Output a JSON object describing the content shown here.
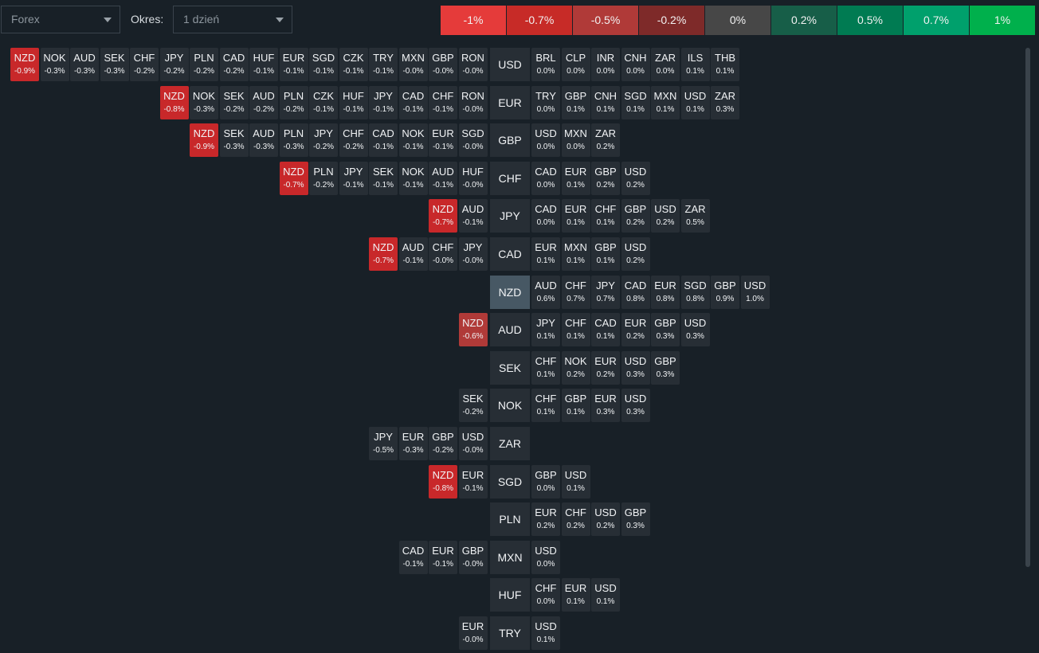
{
  "toolbar": {
    "market": "Forex",
    "period_label": "Okres:",
    "period": "1 dzień"
  },
  "legend": [
    {
      "label": "-1%",
      "color": "#e53b3a"
    },
    {
      "label": "-0.7%",
      "color": "#c72b27"
    },
    {
      "label": "-0.5%",
      "color": "#b03a38"
    },
    {
      "label": "-0.2%",
      "color": "#7e2a29"
    },
    {
      "label": "0%",
      "color": "#474747"
    },
    {
      "label": "0.2%",
      "color": "#175e48"
    },
    {
      "label": "0.5%",
      "color": "#007b52"
    },
    {
      "label": "0.7%",
      "color": "#00a06c"
    },
    {
      "label": "1%",
      "color": "#00b04c"
    }
  ],
  "colors": {
    "cell": "#272e35",
    "strong_negative": "#c8282a",
    "negative": "#b03a38",
    "highlight": "#475864"
  },
  "highlighted": "NZD",
  "rows": [
    {
      "base": "USD",
      "left": [
        [
          "NZD",
          "-0.9%"
        ],
        [
          "NOK",
          "-0.3%"
        ],
        [
          "AUD",
          "-0.3%"
        ],
        [
          "SEK",
          "-0.3%"
        ],
        [
          "CHF",
          "-0.2%"
        ],
        [
          "JPY",
          "-0.2%"
        ],
        [
          "PLN",
          "-0.2%"
        ],
        [
          "CAD",
          "-0.2%"
        ],
        [
          "HUF",
          "-0.1%"
        ],
        [
          "EUR",
          "-0.1%"
        ],
        [
          "SGD",
          "-0.1%"
        ],
        [
          "CZK",
          "-0.1%"
        ],
        [
          "TRY",
          "-0.1%"
        ],
        [
          "MXN",
          "-0.0%"
        ],
        [
          "GBP",
          "-0.0%"
        ],
        [
          "RON",
          "-0.0%"
        ]
      ],
      "right": [
        [
          "BRL",
          "0.0%"
        ],
        [
          "CLP",
          "0.0%"
        ],
        [
          "INR",
          "0.0%"
        ],
        [
          "CNH",
          "0.0%"
        ],
        [
          "ZAR",
          "0.0%"
        ],
        [
          "ILS",
          "0.1%"
        ],
        [
          "THB",
          "0.1%"
        ]
      ]
    },
    {
      "base": "EUR",
      "left": [
        [
          "NZD",
          "-0.8%"
        ],
        [
          "NOK",
          "-0.3%"
        ],
        [
          "SEK",
          "-0.2%"
        ],
        [
          "AUD",
          "-0.2%"
        ],
        [
          "PLN",
          "-0.2%"
        ],
        [
          "CZK",
          "-0.1%"
        ],
        [
          "HUF",
          "-0.1%"
        ],
        [
          "JPY",
          "-0.1%"
        ],
        [
          "CAD",
          "-0.1%"
        ],
        [
          "CHF",
          "-0.1%"
        ],
        [
          "RON",
          "-0.0%"
        ]
      ],
      "right": [
        [
          "TRY",
          "0.0%"
        ],
        [
          "GBP",
          "0.1%"
        ],
        [
          "CNH",
          "0.1%"
        ],
        [
          "SGD",
          "0.1%"
        ],
        [
          "MXN",
          "0.1%"
        ],
        [
          "USD",
          "0.1%"
        ],
        [
          "ZAR",
          "0.3%"
        ]
      ]
    },
    {
      "base": "GBP",
      "left": [
        [
          "NZD",
          "-0.9%"
        ],
        [
          "SEK",
          "-0.3%"
        ],
        [
          "AUD",
          "-0.3%"
        ],
        [
          "PLN",
          "-0.3%"
        ],
        [
          "JPY",
          "-0.2%"
        ],
        [
          "CHF",
          "-0.2%"
        ],
        [
          "CAD",
          "-0.1%"
        ],
        [
          "NOK",
          "-0.1%"
        ],
        [
          "EUR",
          "-0.1%"
        ],
        [
          "SGD",
          "-0.0%"
        ]
      ],
      "right": [
        [
          "USD",
          "0.0%"
        ],
        [
          "MXN",
          "0.0%"
        ],
        [
          "ZAR",
          "0.2%"
        ]
      ]
    },
    {
      "base": "CHF",
      "left": [
        [
          "NZD",
          "-0.7%"
        ],
        [
          "PLN",
          "-0.2%"
        ],
        [
          "JPY",
          "-0.1%"
        ],
        [
          "SEK",
          "-0.1%"
        ],
        [
          "NOK",
          "-0.1%"
        ],
        [
          "AUD",
          "-0.1%"
        ],
        [
          "HUF",
          "-0.0%"
        ]
      ],
      "right": [
        [
          "CAD",
          "0.0%"
        ],
        [
          "EUR",
          "0.1%"
        ],
        [
          "GBP",
          "0.2%"
        ],
        [
          "USD",
          "0.2%"
        ]
      ]
    },
    {
      "base": "JPY",
      "left": [
        [
          "NZD",
          "-0.7%"
        ],
        [
          "AUD",
          "-0.1%"
        ]
      ],
      "right": [
        [
          "CAD",
          "0.0%"
        ],
        [
          "EUR",
          "0.1%"
        ],
        [
          "CHF",
          "0.1%"
        ],
        [
          "GBP",
          "0.2%"
        ],
        [
          "USD",
          "0.2%"
        ],
        [
          "ZAR",
          "0.5%"
        ]
      ]
    },
    {
      "base": "CAD",
      "left": [
        [
          "NZD",
          "-0.7%"
        ],
        [
          "AUD",
          "-0.1%"
        ],
        [
          "CHF",
          "-0.0%"
        ],
        [
          "JPY",
          "-0.0%"
        ]
      ],
      "right": [
        [
          "EUR",
          "0.1%"
        ],
        [
          "MXN",
          "0.1%"
        ],
        [
          "GBP",
          "0.1%"
        ],
        [
          "USD",
          "0.2%"
        ]
      ]
    },
    {
      "base": "NZD",
      "left": [],
      "right": [
        [
          "AUD",
          "0.6%"
        ],
        [
          "CHF",
          "0.7%"
        ],
        [
          "JPY",
          "0.7%"
        ],
        [
          "CAD",
          "0.8%"
        ],
        [
          "EUR",
          "0.8%"
        ],
        [
          "SGD",
          "0.8%"
        ],
        [
          "GBP",
          "0.9%"
        ],
        [
          "USD",
          "1.0%"
        ]
      ]
    },
    {
      "base": "AUD",
      "left": [
        [
          "NZD",
          "-0.6%"
        ]
      ],
      "right": [
        [
          "JPY",
          "0.1%"
        ],
        [
          "CHF",
          "0.1%"
        ],
        [
          "CAD",
          "0.1%"
        ],
        [
          "EUR",
          "0.2%"
        ],
        [
          "GBP",
          "0.3%"
        ],
        [
          "USD",
          "0.3%"
        ]
      ]
    },
    {
      "base": "SEK",
      "left": [],
      "right": [
        [
          "CHF",
          "0.1%"
        ],
        [
          "NOK",
          "0.2%"
        ],
        [
          "EUR",
          "0.2%"
        ],
        [
          "USD",
          "0.3%"
        ],
        [
          "GBP",
          "0.3%"
        ]
      ]
    },
    {
      "base": "NOK",
      "left": [
        [
          "SEK",
          "-0.2%"
        ]
      ],
      "right": [
        [
          "CHF",
          "0.1%"
        ],
        [
          "GBP",
          "0.1%"
        ],
        [
          "EUR",
          "0.3%"
        ],
        [
          "USD",
          "0.3%"
        ]
      ]
    },
    {
      "base": "ZAR",
      "left": [
        [
          "JPY",
          "-0.5%"
        ],
        [
          "EUR",
          "-0.3%"
        ],
        [
          "GBP",
          "-0.2%"
        ],
        [
          "USD",
          "-0.0%"
        ]
      ],
      "right": []
    },
    {
      "base": "SGD",
      "left": [
        [
          "NZD",
          "-0.8%"
        ],
        [
          "EUR",
          "-0.1%"
        ]
      ],
      "right": [
        [
          "GBP",
          "0.0%"
        ],
        [
          "USD",
          "0.1%"
        ]
      ]
    },
    {
      "base": "PLN",
      "left": [],
      "right": [
        [
          "EUR",
          "0.2%"
        ],
        [
          "CHF",
          "0.2%"
        ],
        [
          "USD",
          "0.2%"
        ],
        [
          "GBP",
          "0.3%"
        ]
      ]
    },
    {
      "base": "MXN",
      "left": [
        [
          "CAD",
          "-0.1%"
        ],
        [
          "EUR",
          "-0.1%"
        ],
        [
          "GBP",
          "-0.0%"
        ]
      ],
      "right": [
        [
          "USD",
          "0.0%"
        ]
      ]
    },
    {
      "base": "HUF",
      "left": [],
      "right": [
        [
          "CHF",
          "0.0%"
        ],
        [
          "EUR",
          "0.1%"
        ],
        [
          "USD",
          "0.1%"
        ]
      ]
    },
    {
      "base": "TRY",
      "left": [
        [
          "EUR",
          "-0.0%"
        ]
      ],
      "right": [
        [
          "USD",
          "0.1%"
        ]
      ]
    }
  ]
}
